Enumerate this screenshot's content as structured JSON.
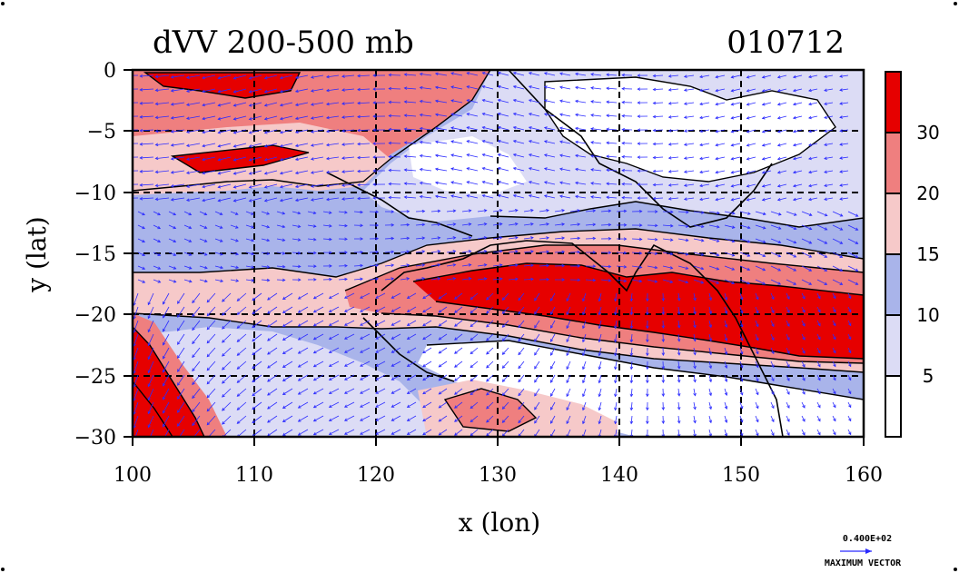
{
  "title": {
    "left": "dVV 200-500 mb",
    "right": "010712"
  },
  "axes": {
    "xlabel": "x (lon)",
    "ylabel": "y (lat)",
    "xlim": [
      100,
      160
    ],
    "ylim": [
      -30,
      0
    ],
    "xticks": [
      "100",
      "110",
      "120",
      "130",
      "140",
      "150",
      "160"
    ],
    "yticks": [
      "0",
      "−5",
      "−10",
      "−15",
      "−20",
      "−25",
      "−30"
    ],
    "grid": true
  },
  "colorbar": {
    "levels": [
      5,
      10,
      15,
      20,
      30
    ],
    "labels": [
      "5",
      "10",
      "15",
      "20",
      "30"
    ],
    "colors": [
      "#ffffff",
      "#dcdcf5",
      "#a9b4ea",
      "#f6c9c9",
      "#ef7f7f",
      "#e60000"
    ]
  },
  "vector_key": {
    "value": "0.400E+02",
    "label": "MAXIMUM VECTOR"
  },
  "vector_color": "#2b2bff"
}
